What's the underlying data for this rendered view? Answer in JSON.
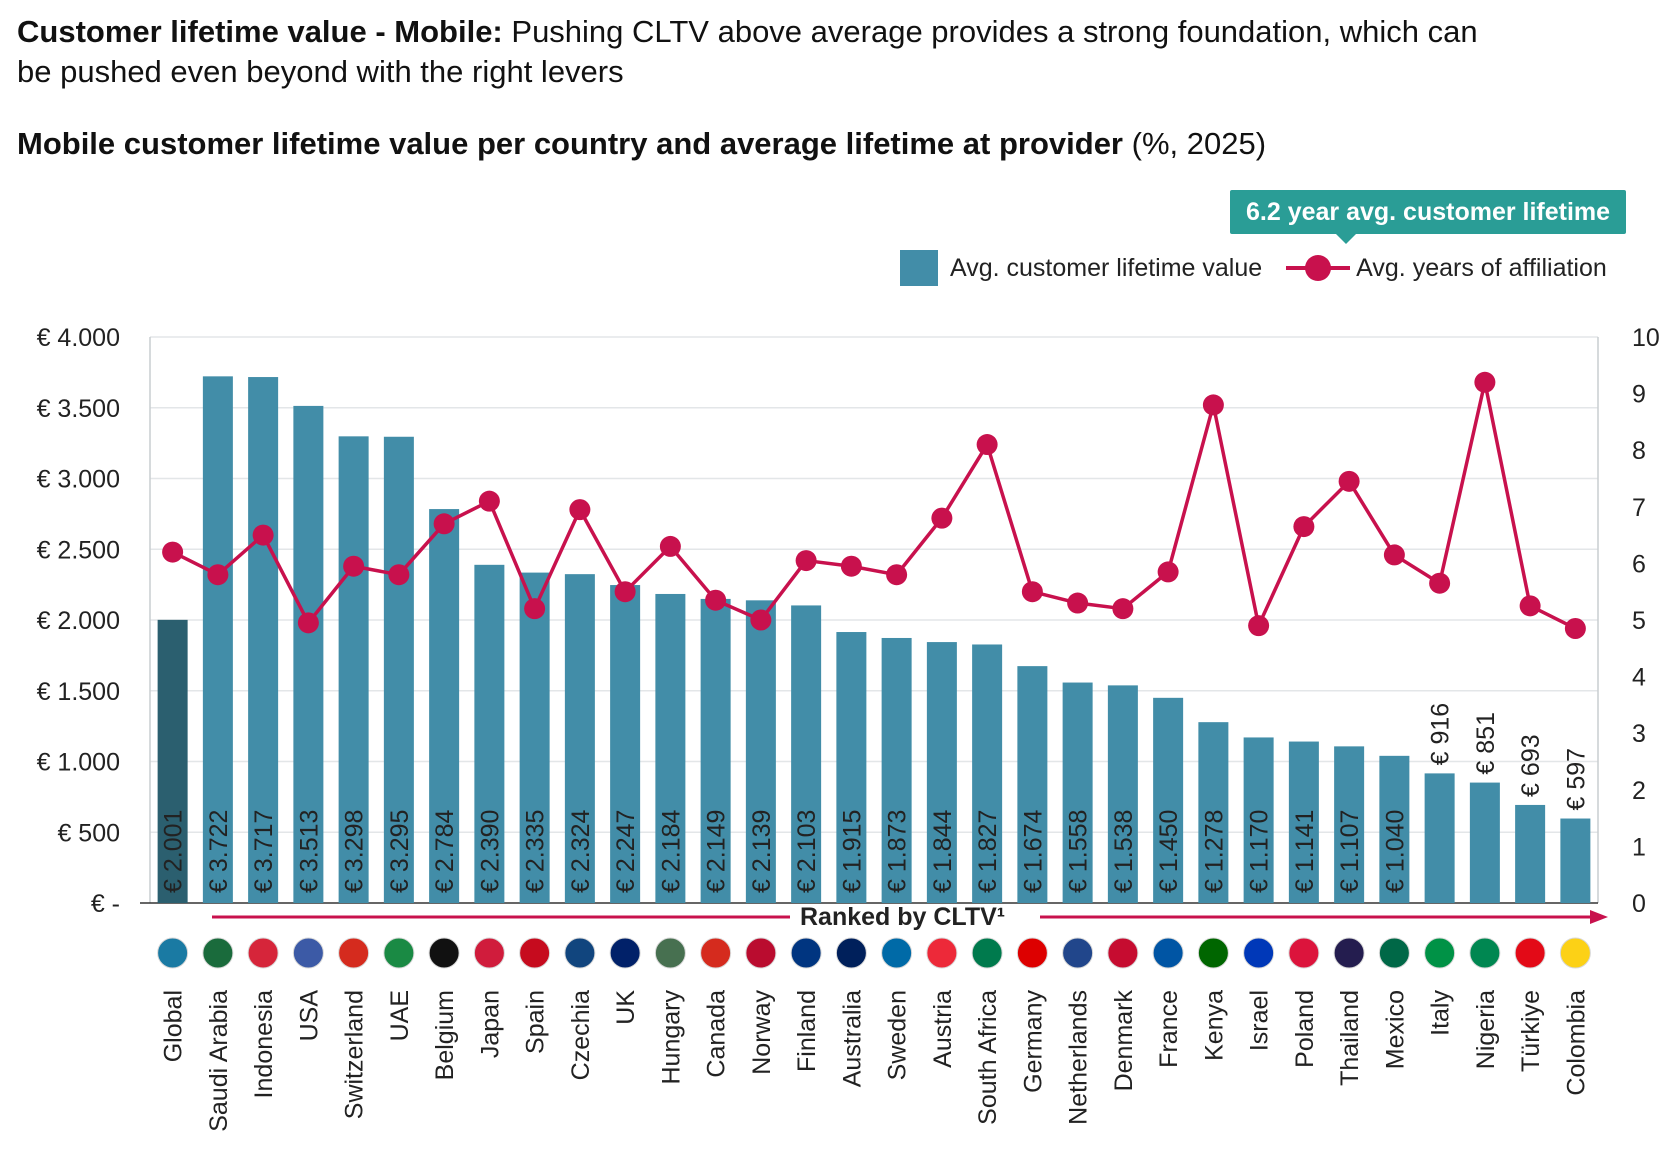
{
  "headline": {
    "bold": "Customer lifetime value - Mobile:",
    "rest": "Pushing CLTV above average provides a strong foundation, which can be pushed even beyond with the right levers"
  },
  "subhead": {
    "bold": "Mobile customer lifetime value per country and average lifetime at provider",
    "rest": "(%, 2025)"
  },
  "callout": "6.2 year avg. customer lifetime",
  "legend": {
    "bar_label": "Avg. customer lifetime value",
    "line_label": "Avg. years of affiliation"
  },
  "ranked_label": "Ranked by CLTV¹",
  "colors": {
    "global_bar": "#2b5f6f",
    "bar": "#428da8",
    "line": "#c8114d",
    "callout": "#2a9d96"
  },
  "chart_data": {
    "type": "bar+line",
    "title": "Mobile customer lifetime value per country and average lifetime at provider",
    "categories": [
      "Global",
      "Saudi Arabia",
      "Indonesia",
      "USA",
      "Switzerland",
      "UAE",
      "Belgium",
      "Japan",
      "Spain",
      "Czechia",
      "UK",
      "Hungary",
      "Canada",
      "Norway",
      "Finland",
      "Australia",
      "Sweden",
      "Austria",
      "South Africa",
      "Germany",
      "Netherlands",
      "Denmark",
      "France",
      "Kenya",
      "Israel",
      "Poland",
      "Thailand",
      "Mexico",
      "Italy",
      "Nigeria",
      "Türkiye",
      "Colombia"
    ],
    "series": [
      {
        "name": "Avg. customer lifetime value",
        "type": "bar",
        "axis": "left",
        "values": [
          2001,
          3722,
          3717,
          3513,
          3298,
          3295,
          2784,
          2390,
          2335,
          2324,
          2247,
          2184,
          2149,
          2139,
          2103,
          1915,
          1873,
          1844,
          1827,
          1674,
          1558,
          1538,
          1450,
          1278,
          1170,
          1141,
          1107,
          1040,
          916,
          851,
          693,
          597
        ],
        "labels": [
          "€ 2.001",
          "€ 3.722",
          "€ 3.717",
          "€ 3.513",
          "€ 3.298",
          "€ 3.295",
          "€ 2.784",
          "€ 2.390",
          "€ 2.335",
          "€ 2.324",
          "€ 2.247",
          "€ 2.184",
          "€ 2.149",
          "€ 2.139",
          "€ 2.103",
          "€ 1.915",
          "€ 1.873",
          "€ 1.844",
          "€ 1.827",
          "€ 1.674",
          "€ 1.558",
          "€ 1.538",
          "€ 1.450",
          "€ 1.278",
          "€ 1.170",
          "€ 1.141",
          "€ 1.107",
          "€ 1.040",
          "€ 916",
          "€ 851",
          "€ 693",
          "€ 597"
        ]
      },
      {
        "name": "Avg. years of affiliation",
        "type": "line",
        "axis": "right",
        "values": [
          6.2,
          5.8,
          6.5,
          4.95,
          5.95,
          5.8,
          6.7,
          7.1,
          5.2,
          6.95,
          5.5,
          6.3,
          5.35,
          5.0,
          6.05,
          5.95,
          5.8,
          6.8,
          8.1,
          5.5,
          5.3,
          5.2,
          5.85,
          8.8,
          4.9,
          6.65,
          7.45,
          6.15,
          5.65,
          9.2,
          5.25,
          4.85
        ]
      }
    ],
    "y_left": {
      "ylim": [
        0,
        4000
      ],
      "ticks": [
        0,
        500,
        1000,
        1500,
        2000,
        2500,
        3000,
        3500,
        4000
      ],
      "tick_labels": [
        "€ -",
        "€ 500",
        "€ 1.000",
        "€ 1.500",
        "€ 2.000",
        "€ 2.500",
        "€ 3.000",
        "€ 3.500",
        "€ 4.000"
      ]
    },
    "y_right": {
      "ylim": [
        0,
        10
      ],
      "ticks": [
        0,
        1,
        2,
        3,
        4,
        5,
        6,
        7,
        8,
        9,
        10
      ],
      "tick_labels": [
        "0",
        "1",
        "2",
        "3",
        "4",
        "5",
        "6",
        "7",
        "8",
        "9",
        "10"
      ]
    },
    "grid": true,
    "legend_position": "top-right"
  }
}
